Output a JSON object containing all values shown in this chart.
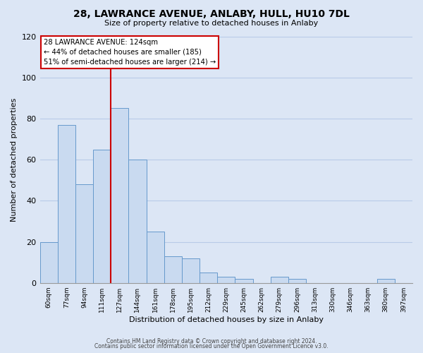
{
  "title": "28, LAWRANCE AVENUE, ANLABY, HULL, HU10 7DL",
  "subtitle": "Size of property relative to detached houses in Anlaby",
  "xlabel": "Distribution of detached houses by size in Anlaby",
  "ylabel": "Number of detached properties",
  "bar_color": "#c9daf0",
  "bar_edge_color": "#6699cc",
  "background_color": "#dce6f5",
  "plot_bg_color": "#dce6f5",
  "grid_color": "#b8cbe8",
  "categories": [
    "60sqm",
    "77sqm",
    "94sqm",
    "111sqm",
    "127sqm",
    "144sqm",
    "161sqm",
    "178sqm",
    "195sqm",
    "212sqm",
    "229sqm",
    "245sqm",
    "262sqm",
    "279sqm",
    "296sqm",
    "313sqm",
    "330sqm",
    "346sqm",
    "363sqm",
    "380sqm",
    "397sqm"
  ],
  "values": [
    20,
    77,
    48,
    65,
    85,
    60,
    25,
    13,
    12,
    5,
    3,
    2,
    0,
    3,
    2,
    0,
    0,
    0,
    0,
    2,
    0
  ],
  "ylim": [
    0,
    120
  ],
  "yticks": [
    0,
    20,
    40,
    60,
    80,
    100,
    120
  ],
  "vline_index": 3.5,
  "marker_label": "28 LAWRANCE AVENUE: 124sqm",
  "annotation_line1": "← 44% of detached houses are smaller (185)",
  "annotation_line2": "51% of semi-detached houses are larger (214) →",
  "annotation_box_color": "#ffffff",
  "annotation_box_edge_color": "#cc0000",
  "vline_color": "#cc0000",
  "footer1": "Contains HM Land Registry data © Crown copyright and database right 2024.",
  "footer2": "Contains public sector information licensed under the Open Government Licence v3.0."
}
